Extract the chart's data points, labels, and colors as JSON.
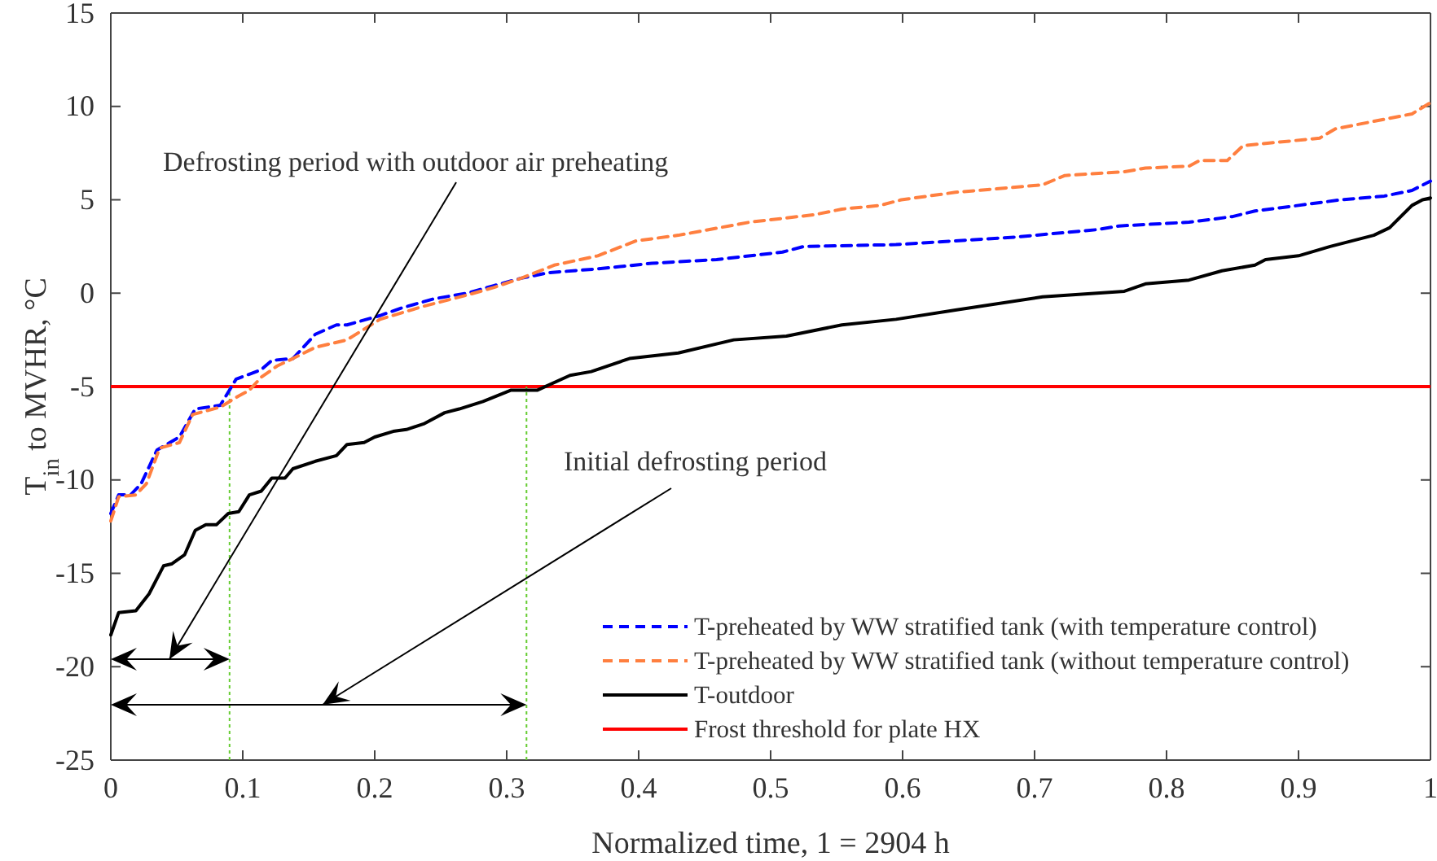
{
  "chart_data": {
    "type": "line",
    "xlabel": "Normalized time, 1 = 2904 h",
    "ylabel": "T$_{in}$ to MVHR, °C",
    "xlim": [
      0,
      1
    ],
    "ylim": [
      -25,
      15
    ],
    "xticks": [
      0,
      0.1,
      0.2,
      0.3,
      0.4,
      0.5,
      0.6,
      0.7,
      0.8,
      0.9,
      1
    ],
    "yticks": [
      -25,
      -20,
      -15,
      -10,
      -5,
      0,
      5,
      10,
      15
    ],
    "grid": false,
    "legend": "bottom right",
    "series": [
      {
        "name": "T-preheated by WW stratified tank (with temperature control)",
        "color": "#0000ff",
        "line_style": "dashed",
        "x": [
          0,
          0.006,
          0.015,
          0.023,
          0.035,
          0.052,
          0.064,
          0.083,
          0.095,
          0.114,
          0.122,
          0.138,
          0.155,
          0.171,
          0.179,
          0.204,
          0.22,
          0.245,
          0.27,
          0.29,
          0.311,
          0.332,
          0.369,
          0.41,
          0.459,
          0.509,
          0.525,
          0.595,
          0.64,
          0.685,
          0.747,
          0.764,
          0.817,
          0.85,
          0.867,
          0.9,
          0.932,
          0.965,
          0.986,
          1
        ],
        "values": [
          -11.8,
          -10.8,
          -10.8,
          -10.2,
          -8.4,
          -7.7,
          -6.2,
          -6,
          -4.6,
          -4.1,
          -3.6,
          -3.5,
          -2.2,
          -1.7,
          -1.7,
          -1.2,
          -0.8,
          -0.3,
          0,
          0.4,
          0.8,
          1.1,
          1.3,
          1.6,
          1.8,
          2.2,
          2.5,
          2.6,
          2.8,
          3,
          3.4,
          3.6,
          3.8,
          4.1,
          4.4,
          4.7,
          5,
          5.2,
          5.5,
          6
        ]
      },
      {
        "name": "T-preheated by WW stratified tank (without temperature control)",
        "color": "#ff7f3f",
        "line_style": "dashed",
        "x": [
          0,
          0.006,
          0.019,
          0.027,
          0.037,
          0.052,
          0.062,
          0.083,
          0.097,
          0.105,
          0.114,
          0.126,
          0.138,
          0.155,
          0.179,
          0.204,
          0.237,
          0.27,
          0.29,
          0.311,
          0.336,
          0.369,
          0.398,
          0.43,
          0.484,
          0.533,
          0.554,
          0.583,
          0.599,
          0.64,
          0.706,
          0.723,
          0.768,
          0.784,
          0.817,
          0.825,
          0.846,
          0.858,
          0.916,
          0.928,
          0.986,
          1
        ],
        "values": [
          -12.2,
          -10.9,
          -10.8,
          -10.2,
          -8.3,
          -8,
          -6.5,
          -6.1,
          -5.5,
          -5.2,
          -4.5,
          -3.9,
          -3.5,
          -2.9,
          -2.5,
          -1.4,
          -0.7,
          -0.1,
          0.3,
          0.8,
          1.5,
          2,
          2.8,
          3.1,
          3.8,
          4.2,
          4.5,
          4.7,
          5,
          5.4,
          5.8,
          6.3,
          6.5,
          6.7,
          6.8,
          7.1,
          7.1,
          7.9,
          8.3,
          8.8,
          9.6,
          10.2
        ]
      },
      {
        "name": "T-outdoor",
        "color": "#000000",
        "line_style": "solid",
        "x": [
          0,
          0.006,
          0.019,
          0.029,
          0.04,
          0.046,
          0.056,
          0.064,
          0.072,
          0.08,
          0.089,
          0.097,
          0.105,
          0.114,
          0.122,
          0.132,
          0.138,
          0.155,
          0.171,
          0.179,
          0.192,
          0.2,
          0.214,
          0.224,
          0.237,
          0.253,
          0.264,
          0.282,
          0.303,
          0.323,
          0.348,
          0.364,
          0.393,
          0.43,
          0.472,
          0.512,
          0.554,
          0.595,
          0.64,
          0.706,
          0.768,
          0.784,
          0.817,
          0.842,
          0.867,
          0.875,
          0.9,
          0.924,
          0.957,
          0.969,
          0.986,
          0.994,
          1
        ],
        "values": [
          -18.3,
          -17.1,
          -17,
          -16.1,
          -14.6,
          -14.5,
          -14,
          -12.7,
          -12.4,
          -12.4,
          -11.8,
          -11.7,
          -10.8,
          -10.6,
          -9.9,
          -9.9,
          -9.4,
          -9,
          -8.7,
          -8.1,
          -8,
          -7.7,
          -7.4,
          -7.3,
          -7,
          -6.4,
          -6.2,
          -5.8,
          -5.2,
          -5.2,
          -4.4,
          -4.2,
          -3.5,
          -3.2,
          -2.5,
          -2.3,
          -1.7,
          -1.4,
          -0.9,
          -0.2,
          0.1,
          0.5,
          0.7,
          1.2,
          1.5,
          1.8,
          2,
          2.5,
          3.1,
          3.5,
          4.7,
          5,
          5.1
        ]
      }
    ],
    "ref_lines": [
      {
        "axis": "y",
        "value": -5,
        "label": "Frost threshold for plate HX",
        "color": "#ff0000",
        "line_style": "solid"
      },
      {
        "axis": "x",
        "value": 0.09,
        "color": "#66cc33",
        "line_style": "dotted"
      },
      {
        "axis": "x",
        "value": 0.315,
        "color": "#66cc33",
        "line_style": "dotted"
      }
    ],
    "annotations": [
      "Defrosting period with outdoor air preheating",
      "Initial defrosting period"
    ]
  }
}
